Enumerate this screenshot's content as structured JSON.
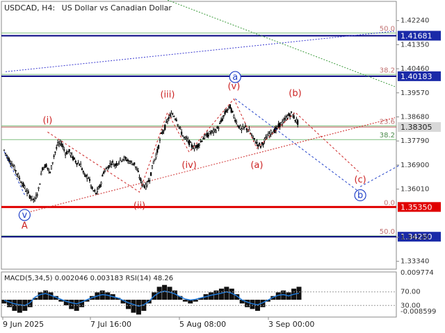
{
  "header": {
    "symbol_timeframe": "USDCAD, H4:",
    "description": "US Dollar vs Canadian Dollar"
  },
  "colors": {
    "candle": "#000000",
    "blue_level": "#000080",
    "red_level": "#e00000",
    "fib_green": "#7fbf7f",
    "fib_label": "#c07070",
    "wave_red": "#cc2222",
    "wave_blue": "#1f3fc8",
    "macd_line": "#1e78d8",
    "grid": "#c8c8c8"
  },
  "chart_data": {
    "type": "candlestick",
    "ylim": [
      1.3305,
      1.4295
    ],
    "y_ticks": [
      "1.42240",
      "1.41350",
      "1.40460",
      "1.39570",
      "1.38680",
      "1.37790",
      "1.36900",
      "1.36010",
      "1.34230",
      "1.33340"
    ],
    "price_close_path": [
      [
        0,
        1.3745
      ],
      [
        3,
        1.3715
      ],
      [
        6,
        1.3695
      ],
      [
        9,
        1.367
      ],
      [
        12,
        1.364
      ],
      [
        15,
        1.3615
      ],
      [
        18,
        1.359
      ],
      [
        21,
        1.357
      ],
      [
        24,
        1.356
      ],
      [
        27,
        1.36
      ],
      [
        30,
        1.368
      ],
      [
        33,
        1.369
      ],
      [
        36,
        1.366
      ],
      [
        39,
        1.3725
      ],
      [
        42,
        1.3765
      ],
      [
        45,
        1.377
      ],
      [
        48,
        1.3735
      ],
      [
        51,
        1.374
      ],
      [
        54,
        1.3715
      ],
      [
        57,
        1.37
      ],
      [
        60,
        1.369
      ],
      [
        63,
        1.365
      ],
      [
        66,
        1.3645
      ],
      [
        69,
        1.36
      ],
      [
        72,
        1.3585
      ],
      [
        75,
        1.361
      ],
      [
        78,
        1.3665
      ],
      [
        81,
        1.368
      ],
      [
        84,
        1.37
      ],
      [
        87,
        1.369
      ],
      [
        90,
        1.3705
      ],
      [
        93,
        1.3715
      ],
      [
        96,
        1.371
      ],
      [
        99,
        1.37
      ],
      [
        102,
        1.3695
      ],
      [
        105,
        1.366
      ],
      [
        108,
        1.362
      ],
      [
        111,
        1.361
      ],
      [
        114,
        1.364
      ],
      [
        117,
        1.37
      ],
      [
        120,
        1.374
      ],
      [
        123,
        1.38
      ],
      [
        126,
        1.383
      ],
      [
        129,
        1.3865
      ],
      [
        132,
        1.388
      ],
      [
        135,
        1.386
      ],
      [
        138,
        1.382
      ],
      [
        141,
        1.379
      ],
      [
        144,
        1.378
      ],
      [
        147,
        1.376
      ],
      [
        150,
        1.3755
      ],
      [
        153,
        1.377
      ],
      [
        156,
        1.379
      ],
      [
        159,
        1.38
      ],
      [
        162,
        1.381
      ],
      [
        165,
        1.3815
      ],
      [
        168,
        1.383
      ],
      [
        171,
        1.386
      ],
      [
        174,
        1.389
      ],
      [
        177,
        1.3905
      ],
      [
        180,
        1.387
      ],
      [
        183,
        1.384
      ],
      [
        186,
        1.382
      ],
      [
        189,
        1.383
      ],
      [
        192,
        1.3815
      ],
      [
        195,
        1.379
      ],
      [
        198,
        1.377
      ],
      [
        201,
        1.376
      ],
      [
        204,
        1.378
      ],
      [
        207,
        1.38
      ],
      [
        210,
        1.3815
      ],
      [
        213,
        1.382
      ],
      [
        216,
        1.384
      ],
      [
        219,
        1.385
      ],
      [
        222,
        1.387
      ],
      [
        225,
        1.388
      ],
      [
        228,
        1.386
      ],
      [
        231,
        1.384
      ]
    ],
    "x_range": [
      0,
      231
    ],
    "x_ticks": [
      "9 Jun 2025",
      "7 Jul 16:00",
      "5 Aug 08:00",
      "3 Sep 00:00"
    ],
    "price_levels": [
      {
        "label": "1.41681",
        "value": 1.41681,
        "color": "blue"
      },
      {
        "label": "1.40183",
        "value": 1.40183,
        "color": "blue"
      },
      {
        "label": "1.38305",
        "value": 1.38305,
        "color": "current"
      },
      {
        "label": "1.35350",
        "value": 1.3535,
        "color": "red"
      },
      {
        "label": "1.34250",
        "value": 1.3425,
        "color": "blue"
      }
    ],
    "fib_levels": [
      {
        "label": "50.0",
        "value": 1.4178
      },
      {
        "label": "38.2",
        "value": 1.4025
      },
      {
        "label": "23.6",
        "value": 1.3835
      },
      {
        "label": "38.2",
        "value": 1.3784
      },
      {
        "label": "0.0",
        "value": 1.3535
      },
      {
        "label": "50.0",
        "value": 1.3428
      }
    ],
    "wave_labels": [
      {
        "text": "(i)",
        "x": 34,
        "y": 1.3845,
        "color": "red",
        "circled": false
      },
      {
        "text": "(ii)",
        "x": 106,
        "y": 1.353,
        "color": "red",
        "circled": false
      },
      {
        "text": "(iii)",
        "x": 128,
        "y": 1.394,
        "color": "red",
        "circled": false
      },
      {
        "text": "(iv)",
        "x": 145,
        "y": 1.368,
        "color": "red",
        "circled": false
      },
      {
        "text": "(v)",
        "x": 180,
        "y": 1.397,
        "color": "red",
        "circled": false
      },
      {
        "text": "(a)",
        "x": 198,
        "y": 1.368,
        "color": "red",
        "circled": false
      },
      {
        "text": "(b)",
        "x": 228,
        "y": 1.3945,
        "color": "red",
        "circled": false
      },
      {
        "text": "(c)",
        "x": 279,
        "y": 1.3625,
        "color": "red",
        "circled": false
      },
      {
        "text": "a",
        "x": 181,
        "y": 1.4005,
        "color": "blue",
        "circled": true
      },
      {
        "text": "b",
        "x": 279,
        "y": 1.3568,
        "color": "blue",
        "circled": true
      },
      {
        "text": "v",
        "x": 16,
        "y": 1.3495,
        "color": "blue",
        "circled": true
      },
      {
        "text": "A",
        "x": 16,
        "y": 1.3455,
        "color": "red",
        "circled": false
      }
    ]
  },
  "indicator": {
    "label": "MACD(5,34,5) 0.002046 0.003183 RSI(14) 48.26",
    "axis_labels": [
      "0.009774",
      "70.00",
      "30.00",
      "-0.008599"
    ],
    "macd_hist": [
      -0.002,
      -0.004,
      -0.006,
      -0.007,
      -0.006,
      -0.004,
      0.001,
      0.004,
      0.005,
      0.004,
      0.002,
      -0.001,
      -0.003,
      -0.005,
      -0.006,
      -0.004,
      -0.001,
      0.002,
      0.004,
      0.005,
      0.004,
      0.003,
      0.001,
      -0.002,
      -0.005,
      -0.007,
      -0.008,
      -0.006,
      -0.002,
      0.004,
      0.007,
      0.008,
      0.007,
      0.005,
      0.002,
      -0.001,
      -0.002,
      -0.001,
      0.001,
      0.003,
      0.004,
      0.005,
      0.006,
      0.007,
      0.006,
      0.003,
      -0.002,
      -0.004,
      -0.005,
      -0.006,
      -0.004,
      -0.001,
      0.002,
      0.004,
      0.005,
      0.004,
      0.006,
      0.007
    ],
    "rsi_values": [
      45,
      40,
      35,
      32,
      30,
      38,
      55,
      62,
      65,
      60,
      54,
      48,
      42,
      38,
      35,
      40,
      47,
      53,
      58,
      62,
      60,
      56,
      52,
      45,
      38,
      33,
      28,
      32,
      42,
      58,
      68,
      72,
      69,
      64,
      56,
      49,
      46,
      48,
      52,
      56,
      60,
      63,
      66,
      70,
      66,
      58,
      46,
      40,
      35,
      32,
      38,
      46,
      54,
      60,
      62,
      58,
      63,
      66
    ]
  }
}
